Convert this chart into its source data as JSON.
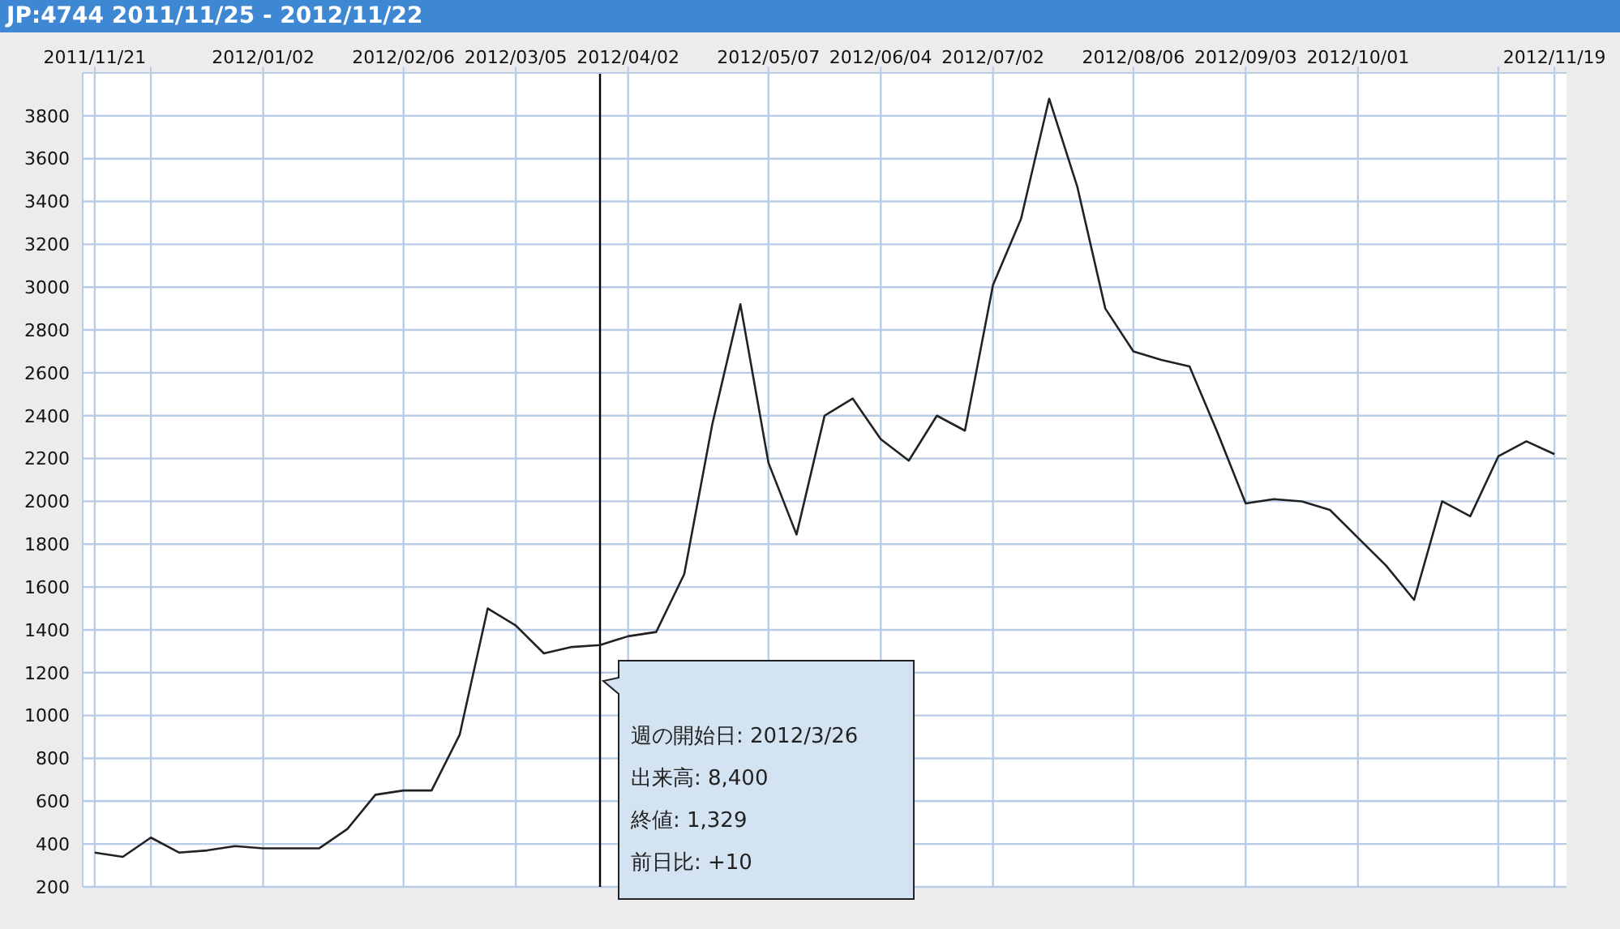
{
  "chart_data": {
    "type": "line",
    "title": "JP:4744 2011/11/25 - 2012/11/22",
    "x": [
      "2011-11-21",
      "2011-11-28",
      "2011-12-05",
      "2011-12-12",
      "2011-12-19",
      "2011-12-26",
      "2012-01-02",
      "2012-01-09",
      "2012-01-16",
      "2012-01-23",
      "2012-01-30",
      "2012-02-06",
      "2012-02-13",
      "2012-02-20",
      "2012-02-27",
      "2012-03-05",
      "2012-03-12",
      "2012-03-19",
      "2012-03-26",
      "2012-04-02",
      "2012-04-09",
      "2012-04-16",
      "2012-04-23",
      "2012-04-30",
      "2012-05-07",
      "2012-05-14",
      "2012-05-21",
      "2012-05-28",
      "2012-06-04",
      "2012-06-11",
      "2012-06-18",
      "2012-06-25",
      "2012-07-02",
      "2012-07-09",
      "2012-07-16",
      "2012-07-23",
      "2012-07-30",
      "2012-08-06",
      "2012-08-13",
      "2012-08-20",
      "2012-08-27",
      "2012-09-03",
      "2012-09-10",
      "2012-09-17",
      "2012-09-24",
      "2012-10-01",
      "2012-10-08",
      "2012-10-15",
      "2012-10-22",
      "2012-10-29",
      "2012-11-05",
      "2012-11-12",
      "2012-11-19"
    ],
    "series": [
      {
        "color": "#222222",
        "values": [
          360,
          340,
          430,
          360,
          370,
          390,
          380,
          380,
          380,
          470,
          630,
          650,
          650,
          910,
          1500,
          1420,
          1290,
          1320,
          1329,
          1370,
          1390,
          1660,
          2360,
          2920,
          2180,
          1845,
          2400,
          2480,
          2290,
          2190,
          2400,
          2330,
          3010,
          3320,
          3880,
          3470,
          2900,
          2700,
          2660,
          2630,
          2320,
          1990,
          2010,
          2000,
          1960,
          1830,
          1700,
          1540,
          2000,
          1930,
          2210,
          2280,
          2220
        ]
      }
    ],
    "xlim": [
      "2011-11-18",
      "2012-11-22"
    ],
    "xticks": [
      {
        "value": "2011-11-21",
        "label": "2011/11/21"
      },
      {
        "value": "2011-12-05",
        "label": null
      },
      {
        "value": "2012-01-02",
        "label": "2012/01/02"
      },
      {
        "value": "2012-02-06",
        "label": "2012/02/06"
      },
      {
        "value": "2012-03-05",
        "label": "2012/03/05"
      },
      {
        "value": "2012-04-02",
        "label": "2012/04/02"
      },
      {
        "value": "2012-05-07",
        "label": "2012/05/07"
      },
      {
        "value": "2012-06-04",
        "label": "2012/06/04"
      },
      {
        "value": "2012-07-02",
        "label": "2012/07/02"
      },
      {
        "value": "2012-08-06",
        "label": "2012/08/06"
      },
      {
        "value": "2012-09-03",
        "label": "2012/09/03"
      },
      {
        "value": "2012-10-01",
        "label": "2012/10/01"
      },
      {
        "value": "2012-11-05",
        "label": null
      },
      {
        "value": "2012-11-19",
        "label": "2012/11/19"
      }
    ],
    "ylim": [
      200,
      4000
    ],
    "yticks": [
      200,
      400,
      600,
      800,
      1000,
      1200,
      1400,
      1600,
      1800,
      2000,
      2200,
      2400,
      2600,
      2800,
      3000,
      3200,
      3400,
      3600,
      3800
    ],
    "grid": true,
    "legend": false,
    "marker": "none",
    "line_style": "solid",
    "ref_lines": [
      {
        "axis": "x",
        "value": "2012-03-26",
        "color": "#000000"
      }
    ],
    "annotations": [
      "週の開始日: 2012/3/26",
      "出来高: 8,400",
      "終値: 1,329",
      "前日比: +10"
    ]
  }
}
